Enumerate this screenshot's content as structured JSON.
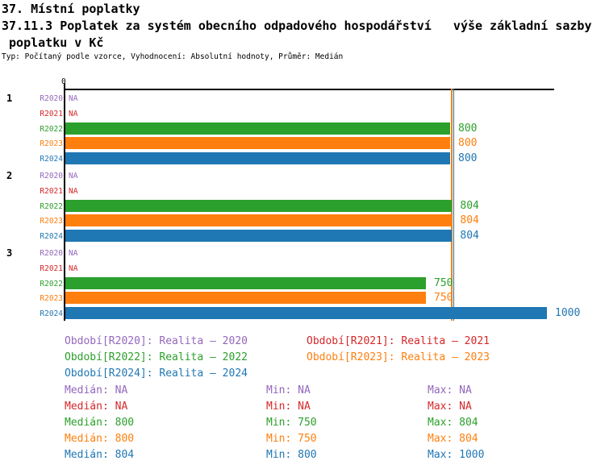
{
  "chart_data": {
    "type": "bar",
    "orientation": "horizontal",
    "title": "37. Místní poplatky",
    "subtitle": "37.11.3 Poplatek za systém obecního odpadového hospodářství   výše základní sazby",
    "subtitle2": " poplatku v Kč",
    "meta": "Typ: Počítaný podle vzorce, Vyhodnocení: Absolutní hodnoty, Průměr: Medián",
    "xlim": [
      0,
      1010
    ],
    "zero_tick_label": "0",
    "na_label": "NA",
    "grid": false,
    "legend_position": "bottom",
    "series": [
      {
        "id": "R2020",
        "label": "R2020",
        "color": "#9467bd",
        "legend": "Období[R2020]: Realita – 2020",
        "median": "NA",
        "min": "NA",
        "max": "NA"
      },
      {
        "id": "R2021",
        "label": "R2021",
        "color": "#d62728",
        "legend": "Období[R2021]: Realita – 2021",
        "median": "NA",
        "min": "NA",
        "max": "NA"
      },
      {
        "id": "R2022",
        "label": "R2022",
        "color": "#2ca02c",
        "legend": "Období[R2022]: Realita – 2022",
        "median": "800",
        "min": "750",
        "max": "804"
      },
      {
        "id": "R2023",
        "label": "R2023",
        "color": "#ff7f0e",
        "legend": "Období[R2023]: Realita – 2023",
        "median": "800",
        "min": "750",
        "max": "804"
      },
      {
        "id": "R2024",
        "label": "R2024",
        "color": "#1f77b4",
        "legend": "Období[R2024]: Realita – 2024",
        "median": "804",
        "min": "800",
        "max": "1000"
      }
    ],
    "groups": [
      {
        "label": "1",
        "values": [
          null,
          null,
          800,
          800,
          800
        ]
      },
      {
        "label": "2",
        "values": [
          null,
          null,
          804,
          804,
          804
        ]
      },
      {
        "label": "3",
        "values": [
          null,
          null,
          750,
          750,
          1000
        ]
      }
    ],
    "median_lines": [
      {
        "series": "R2022",
        "value": 800
      },
      {
        "series": "R2023",
        "value": 800
      },
      {
        "series": "R2024",
        "value": 804
      }
    ]
  },
  "stats_labels": {
    "median": "Medián",
    "min": "Min",
    "max": "Max"
  }
}
